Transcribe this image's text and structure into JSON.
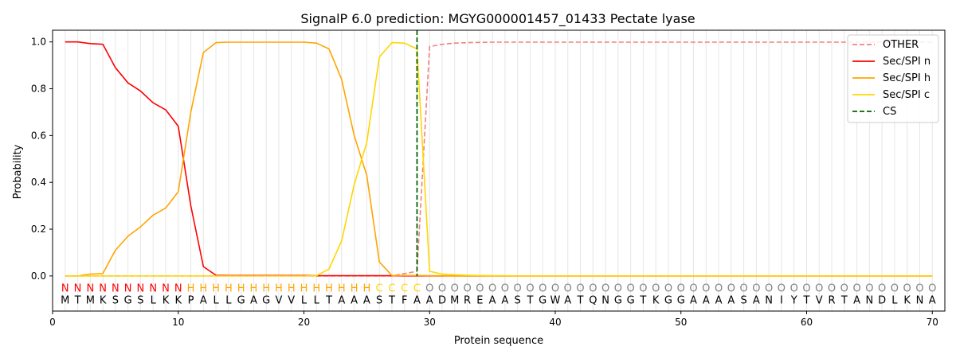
{
  "chart_data": {
    "type": "line",
    "title": "SignalP 6.0 prediction: MGYG000001457_01433 Pectate lyase",
    "xlabel": "Protein sequence",
    "ylabel": "Probability",
    "xlim": [
      0,
      71
    ],
    "ylim": [
      -0.15,
      1.05
    ],
    "grid": "vertical",
    "legend_position": "top-right",
    "x_ticks": [
      0,
      10,
      20,
      30,
      40,
      50,
      60,
      70
    ],
    "y_ticks": [
      0.0,
      0.2,
      0.4,
      0.6,
      0.8,
      1.0
    ],
    "x_tick_labels": [
      "0",
      "10",
      "20",
      "30",
      "40",
      "50",
      "60",
      "70"
    ],
    "y_tick_labels": [
      "0.0",
      "0.2",
      "0.4",
      "0.6",
      "0.8",
      "1.0"
    ],
    "sequence": "MTMKSGSLKKPALLGAGVVLLTAAASTFAADMREAASTGWATQNGGTKGGAAAASANIYTVRTANDLKNA",
    "labels": "NNNNNNNNNNHHHHHHHHHHHHHHHCCCCOOOOOOOOOOOOOOOOOOOOOOOOOOOOOOOOOOOOOOOOO",
    "label_colors": {
      "N": "#ff0000",
      "H": "#ffa500",
      "C": "#ffd700",
      "O": "#808080"
    },
    "cs_position": 29,
    "series": [
      {
        "name": "OTHER",
        "color": "#f08080",
        "dash": "dashed",
        "values": [
          0,
          0,
          0,
          0,
          0,
          0,
          0,
          0,
          0,
          0,
          0,
          0,
          0,
          0,
          0,
          0,
          0,
          0,
          0,
          0,
          0,
          0,
          0,
          0,
          0,
          0,
          0,
          0.01,
          0.02,
          0.98,
          0.99,
          0.995,
          0.997,
          0.998,
          0.999,
          0.999,
          0.999,
          0.999,
          0.999,
          0.999,
          0.999,
          0.999,
          0.999,
          0.999,
          0.999,
          0.999,
          0.999,
          0.999,
          0.999,
          0.999,
          0.999,
          0.999,
          0.999,
          0.999,
          0.999,
          0.999,
          0.999,
          0.999,
          0.999,
          0.999,
          0.999,
          0.999,
          0.999,
          0.999,
          0.999,
          0.999,
          0.999,
          0.999,
          0.999,
          0.999
        ]
      },
      {
        "name": "Sec/SPI n",
        "color": "#ff0000",
        "dash": "solid",
        "values": [
          1.0,
          1.0,
          0.993,
          0.99,
          0.89,
          0.825,
          0.79,
          0.74,
          0.71,
          0.64,
          0.3,
          0.04,
          0.003,
          0.002,
          0.002,
          0.002,
          0.002,
          0.002,
          0.002,
          0.002,
          0.001,
          0.001,
          0.001,
          0.001,
          0.001,
          0.001,
          0.001,
          0,
          0,
          0,
          0,
          0,
          0,
          0,
          0,
          0,
          0,
          0,
          0,
          0,
          0,
          0,
          0,
          0,
          0,
          0,
          0,
          0,
          0,
          0,
          0,
          0,
          0,
          0,
          0,
          0,
          0,
          0,
          0,
          0,
          0,
          0,
          0,
          0,
          0,
          0,
          0,
          0,
          0,
          0
        ]
      },
      {
        "name": "Sec/SPI h",
        "color": "#ffa500",
        "dash": "solid",
        "values": [
          0,
          0,
          0.008,
          0.01,
          0.11,
          0.17,
          0.21,
          0.26,
          0.29,
          0.36,
          0.7,
          0.955,
          0.997,
          0.999,
          0.999,
          0.999,
          0.999,
          0.999,
          0.999,
          0.999,
          0.995,
          0.97,
          0.84,
          0.6,
          0.43,
          0.06,
          0.002,
          0.002,
          0.002,
          0.001,
          0.001,
          0,
          0,
          0,
          0,
          0,
          0,
          0,
          0,
          0,
          0,
          0,
          0,
          0,
          0,
          0,
          0,
          0,
          0,
          0,
          0,
          0,
          0,
          0,
          0,
          0,
          0,
          0,
          0,
          0,
          0,
          0,
          0,
          0,
          0,
          0,
          0,
          0,
          0,
          0
        ]
      },
      {
        "name": "Sec/SPI c",
        "color": "#ffd700",
        "dash": "solid",
        "values": [
          0,
          0,
          0,
          0,
          0,
          0,
          0,
          0,
          0,
          0,
          0,
          0,
          0,
          0,
          0,
          0,
          0,
          0,
          0,
          0,
          0.001,
          0.03,
          0.15,
          0.39,
          0.57,
          0.935,
          0.997,
          0.995,
          0.97,
          0.02,
          0.008,
          0.005,
          0.003,
          0.002,
          0.001,
          0.001,
          0,
          0,
          0,
          0,
          0,
          0,
          0,
          0,
          0,
          0,
          0,
          0,
          0,
          0,
          0,
          0,
          0,
          0,
          0,
          0,
          0,
          0,
          0,
          0,
          0,
          0,
          0,
          0,
          0,
          0,
          0,
          0,
          0,
          0
        ]
      }
    ],
    "legend": [
      {
        "name": "OTHER",
        "color": "#f08080",
        "dash": "dashed"
      },
      {
        "name": "Sec/SPI n",
        "color": "#ff0000",
        "dash": "solid"
      },
      {
        "name": "Sec/SPI h",
        "color": "#ffa500",
        "dash": "solid"
      },
      {
        "name": "Sec/SPI c",
        "color": "#ffd700",
        "dash": "solid"
      },
      {
        "name": "CS",
        "color": "#006400",
        "dash": "dashed"
      }
    ]
  }
}
